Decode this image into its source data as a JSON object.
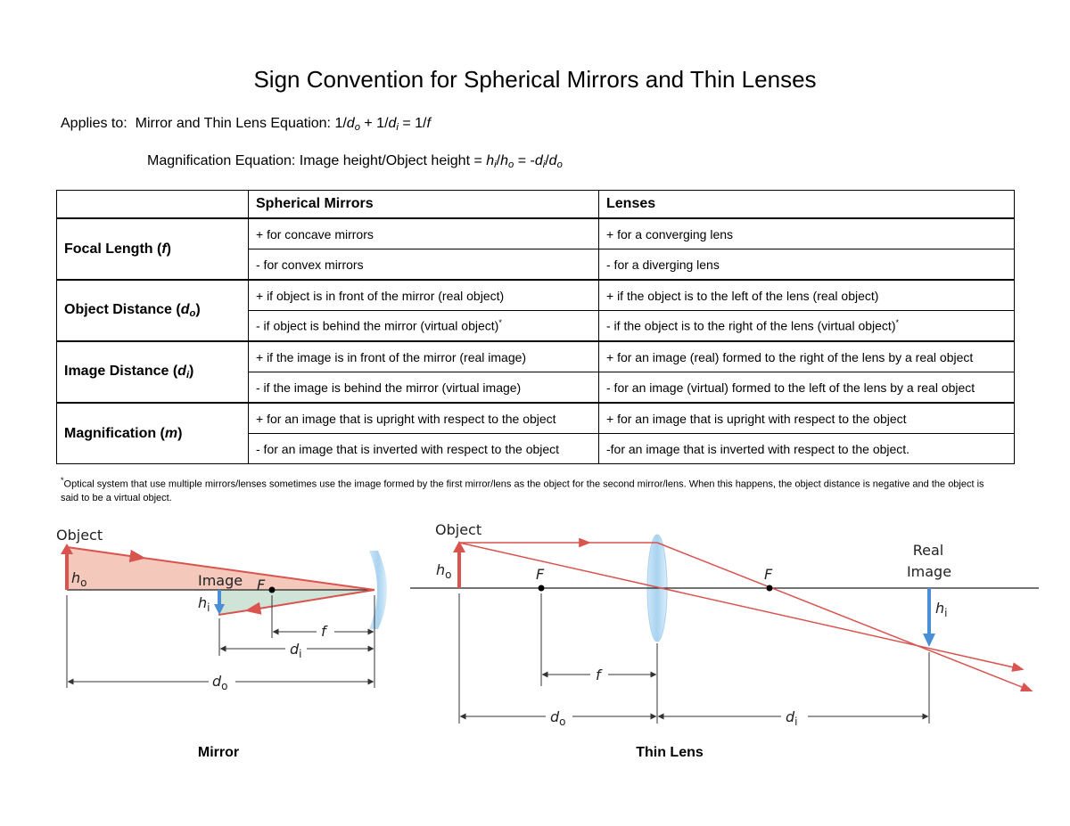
{
  "title": "Sign Convention for Spherical Mirrors and Thin Lenses",
  "applies": {
    "label": "Applies to:",
    "lens_eq": {
      "name": "Mirror and Thin Lens Equation:",
      "parts": [
        "1/",
        "d",
        "o",
        " + 1/",
        "d",
        "i",
        " = 1/",
        "f"
      ]
    },
    "mag_eq": {
      "name": "Magnification Equation: Image height/Object height =",
      "parts": [
        "h",
        "i",
        "/",
        "h",
        "o",
        " = -",
        "d",
        "i",
        "/",
        "d",
        "o"
      ]
    }
  },
  "table": {
    "columns": [
      "Spherical Mirrors",
      "Lenses"
    ],
    "groups": [
      {
        "label": {
          "name": "Focal Length (",
          "symbol": "f",
          "close": ")"
        },
        "rows": [
          [
            "+ for concave mirrors",
            "+ for a converging lens"
          ],
          [
            "- for convex mirrors",
            "- for a diverging lens"
          ]
        ]
      },
      {
        "label": {
          "name": "Object Distance (",
          "symbol": "d",
          "sub": "o",
          "close": ")"
        },
        "rows": [
          [
            "+ if object is in front of the mirror (real object)",
            "+ if the object is to the left of the lens (real object)"
          ],
          [
            {
              "text": "- if object is behind the mirror (virtual object)",
              "mark": "*"
            },
            {
              "text": "- if the object is to the right of the lens (virtual object)",
              "mark": "*"
            }
          ]
        ]
      },
      {
        "label": {
          "name": "Image Distance (",
          "symbol": "d",
          "sub": "i",
          "close": ")"
        },
        "rows": [
          [
            "+ if the image is in front of the mirror (real image)",
            "+ for an image (real) formed to the right of the lens by a real object"
          ],
          [
            "- if the image is behind the mirror (virtual image)",
            "- for an image (virtual) formed to the left of the lens by a real object"
          ]
        ]
      },
      {
        "label": {
          "name": "Magnification (",
          "symbol": "m",
          "close": ")"
        },
        "rows": [
          [
            "+ for an image that is upright with respect to the object",
            "+ for an image that is upright with respect to the object"
          ],
          [
            "- for an image that is inverted with respect to the object",
            "-for an image that is inverted with respect to the object."
          ]
        ]
      }
    ]
  },
  "footnote": {
    "mark": "*",
    "text": "Optical system that use multiple mirrors/lenses sometimes use the image formed by the first mirror/lens as the object for the second mirror/lens. When this happens, the object distance is negative and the object is said to be a virtual object."
  },
  "mirror": {
    "object": "Object",
    "ho": {
      "sym": "h",
      "sub": "o"
    },
    "image": "Image",
    "focus": "F",
    "hi": {
      "sym": "h",
      "sub": "i"
    },
    "f": "f",
    "di": {
      "sym": "d",
      "sub": "i"
    },
    "do": {
      "sym": "d",
      "sub": "o"
    },
    "caption": "Mirror"
  },
  "lens": {
    "object": "Object",
    "ho": {
      "sym": "h",
      "sub": "o"
    },
    "focus_left": "F",
    "focus_right": "F",
    "real_image": [
      "Real",
      "Image"
    ],
    "hi": {
      "sym": "h",
      "sub": "i"
    },
    "f": "f",
    "do": {
      "sym": "d",
      "sub": "o"
    },
    "di": {
      "sym": "d",
      "sub": "i"
    },
    "caption": "Thin Lens"
  }
}
